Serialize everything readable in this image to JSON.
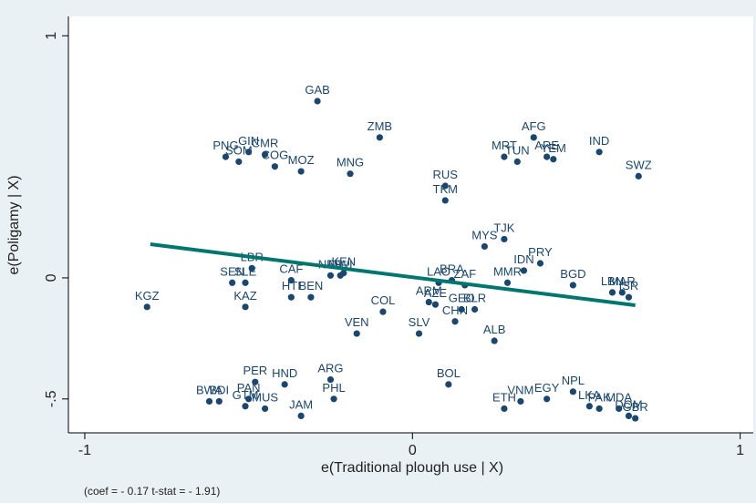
{
  "chart_data": {
    "type": "scatter",
    "xlabel": "e(Traditional plough use | X)",
    "ylabel": "e(Poligamy | X)",
    "note": "(coef = - 0.17 t-stat = - 1.91)",
    "xlim": [
      -1.05,
      1.04
    ],
    "ylim": [
      -0.64,
      1.08
    ],
    "xticks": [
      -1,
      0,
      1
    ],
    "yticks": [
      {
        "value": -0.5,
        "label": "-.5"
      },
      0,
      1
    ],
    "point_color": "#1a476f",
    "labels": [
      "GAB",
      "ZMB",
      "MNG",
      "GIN",
      "CMR",
      "SOM",
      "PNG",
      "MOZ",
      "COG",
      "AFG",
      "IND",
      "SWZ",
      "MRT",
      "TUN",
      "ARE",
      "YEM",
      "RUS",
      "TKM",
      "TJK",
      "MYS",
      "PRY",
      "IDN",
      "MMR",
      "LAO",
      "BRA",
      "ZAF",
      "BGD",
      "LBN",
      "MAR",
      "ISR",
      "LBR",
      "SLE",
      "SEN",
      "CAF",
      "NER",
      "KEN",
      "MWI",
      "HTI",
      "BEN",
      "KAZ",
      "KGZ",
      "ARM",
      "AZE",
      "GEO",
      "BLR",
      "CHN",
      "COL",
      "VEN",
      "SLV",
      "ALB",
      "BOL",
      "ARG",
      "PHL",
      "PER",
      "HND",
      "PAN",
      "GTM",
      "MUS",
      "BDI",
      "BWA",
      "JAM",
      "ETH",
      "VNM",
      "EGY",
      "NPL",
      "LKA",
      "PAK",
      "MDA",
      "DOM",
      "GBR"
    ],
    "x": [
      -0.29,
      -0.1,
      -0.19,
      -0.5,
      -0.45,
      -0.53,
      -0.57,
      -0.34,
      -0.42,
      0.37,
      0.57,
      0.69,
      0.28,
      0.32,
      0.41,
      0.43,
      0.1,
      0.1,
      0.28,
      0.22,
      0.39,
      0.34,
      0.29,
      0.08,
      0.12,
      0.16,
      0.49,
      0.61,
      0.64,
      0.66,
      -0.49,
      -0.51,
      -0.55,
      -0.37,
      -0.25,
      -0.21,
      -0.22,
      -0.37,
      -0.31,
      -0.51,
      -0.81,
      0.05,
      0.07,
      0.15,
      0.19,
      0.13,
      -0.09,
      -0.17,
      0.02,
      0.25,
      0.11,
      -0.25,
      -0.24,
      -0.48,
      -0.39,
      -0.5,
      -0.51,
      -0.45,
      -0.59,
      -0.62,
      -0.34,
      0.28,
      0.33,
      0.41,
      0.49,
      0.54,
      0.57,
      0.63,
      0.66,
      0.68
    ],
    "values": [
      0.73,
      0.58,
      0.43,
      0.52,
      0.51,
      0.48,
      0.5,
      0.44,
      0.46,
      0.58,
      0.52,
      0.42,
      0.5,
      0.48,
      0.5,
      0.49,
      0.38,
      0.32,
      0.16,
      0.13,
      0.06,
      0.03,
      -0.02,
      -0.02,
      -0.01,
      -0.03,
      -0.03,
      -0.06,
      -0.06,
      -0.08,
      0.04,
      -0.02,
      -0.02,
      -0.01,
      0.01,
      0.02,
      0.01,
      -0.08,
      -0.08,
      -0.12,
      -0.12,
      -0.1,
      -0.11,
      -0.13,
      -0.13,
      -0.18,
      -0.14,
      -0.23,
      -0.23,
      -0.26,
      -0.44,
      -0.42,
      -0.5,
      -0.43,
      -0.44,
      -0.5,
      -0.53,
      -0.54,
      -0.51,
      -0.51,
      -0.57,
      -0.54,
      -0.51,
      -0.5,
      -0.47,
      -0.53,
      -0.54,
      -0.54,
      -0.57,
      -0.58
    ],
    "fit": {
      "color": "#00766f",
      "x": [
        -0.8,
        0.68
      ],
      "values": [
        0.139,
        -0.113
      ]
    }
  }
}
